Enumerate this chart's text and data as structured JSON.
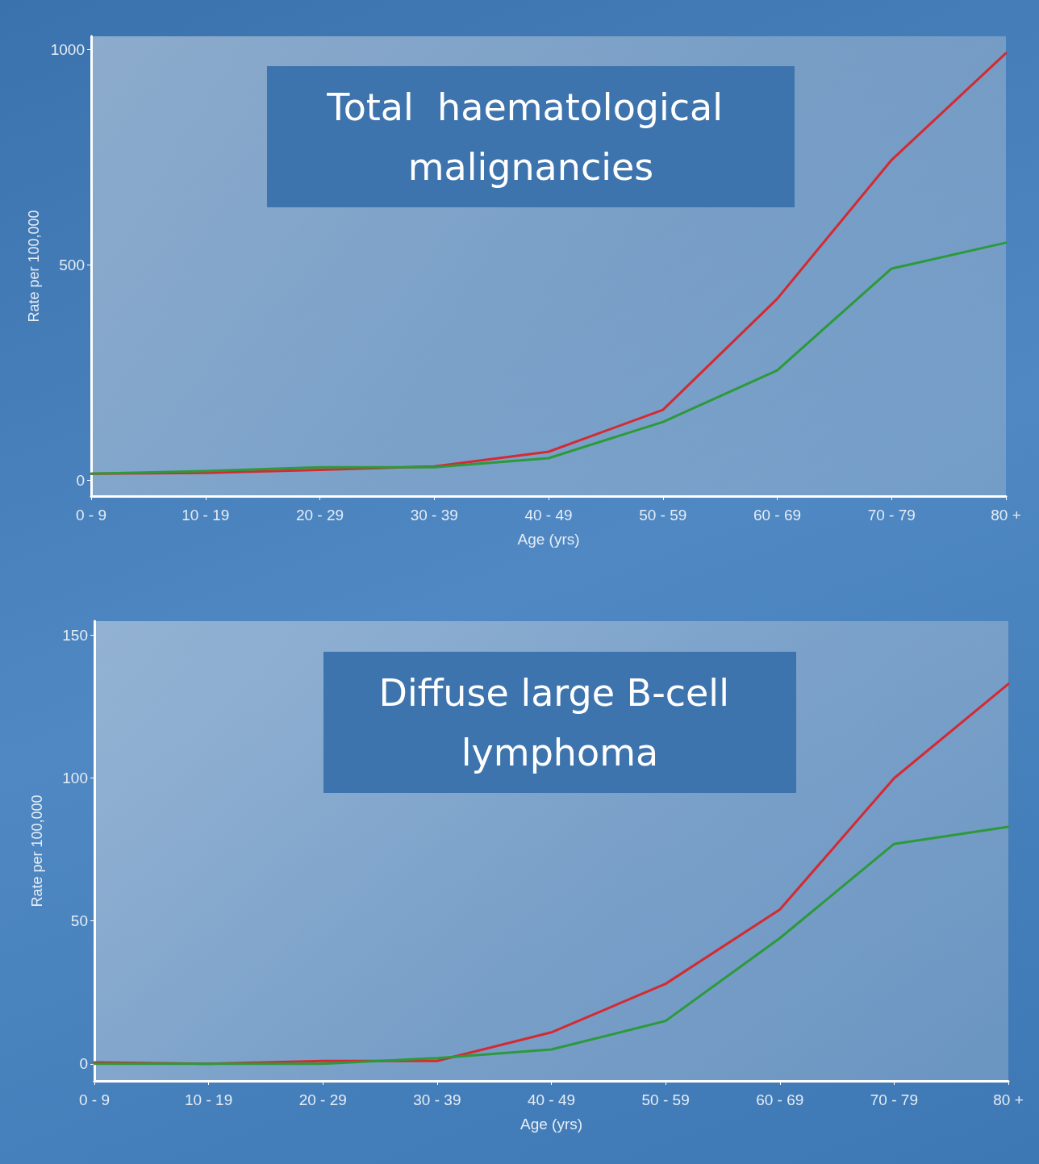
{
  "chart_data": [
    {
      "type": "line",
      "title": "Total  haematological malignancies",
      "xlabel": "Age (yrs)",
      "ylabel": "Rate per 100,000",
      "categories": [
        "0 - 9",
        "10 - 19",
        "20 - 29",
        "30 - 39",
        "40 - 49",
        "50 - 59",
        "60 - 69",
        "70 - 79",
        "80 +"
      ],
      "series": [
        {
          "color": "#d42a32",
          "values": [
            15,
            17,
            24,
            32,
            66,
            163,
            421,
            743,
            991
          ]
        },
        {
          "color": "#2c9a3a",
          "values": [
            15,
            21,
            30,
            30,
            51,
            135,
            255,
            491,
            551
          ]
        }
      ],
      "ylim": [
        -37,
        1030
      ],
      "yticks": [
        0,
        500,
        1000
      ],
      "grid": false,
      "marker": "none",
      "line_style": "solid"
    },
    {
      "type": "line",
      "title": "Diffuse large B-cell lymphoma",
      "xlabel": "Age (yrs)",
      "ylabel": "Rate per 100,000",
      "categories": [
        "0 - 9",
        "10 - 19",
        "20 - 29",
        "30 - 39",
        "40 - 49",
        "50 - 59",
        "60 - 69",
        "70 - 79",
        "80 +"
      ],
      "series": [
        {
          "color": "#d42a32",
          "values": [
            0.5,
            0,
            1,
            1,
            11,
            28,
            54,
            100,
            133
          ]
        },
        {
          "color": "#2c9a3a",
          "values": [
            0,
            0,
            0,
            2,
            5,
            15,
            44,
            77,
            83
          ]
        }
      ],
      "ylim": [
        -6,
        155
      ],
      "yticks": [
        0,
        50,
        100,
        150
      ],
      "grid": false,
      "marker": "none",
      "line_style": "solid"
    }
  ]
}
